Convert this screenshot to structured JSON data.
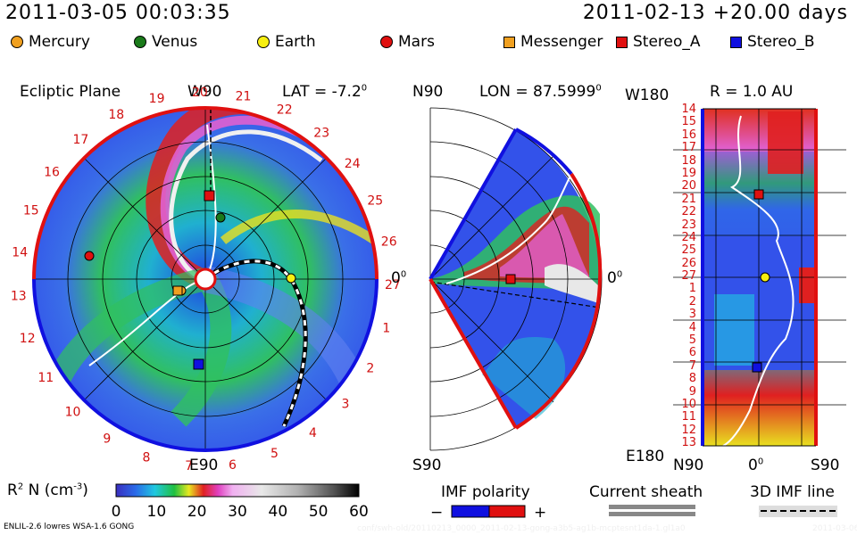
{
  "header": {
    "current_time": "2011-03-05 00:03:35",
    "run_info": "2011-02-13 +20.00 days"
  },
  "legend": {
    "bodies": [
      {
        "label": "Mercury",
        "color": "#f0a020",
        "shape": "circle"
      },
      {
        "label": "Venus",
        "color": "#1a7a1a",
        "shape": "circle"
      },
      {
        "label": "Earth",
        "color": "#f7ef10",
        "shape": "circle"
      },
      {
        "label": "Mars",
        "color": "#e01010",
        "shape": "circle"
      },
      {
        "label": "Messenger",
        "color": "#f0a020",
        "shape": "square"
      },
      {
        "label": "Stereo_A",
        "color": "#e01010",
        "shape": "square"
      },
      {
        "label": "Stereo_B",
        "color": "#1010e0",
        "shape": "square"
      }
    ]
  },
  "panels": {
    "ecliptic": {
      "title": "Ecliptic Plane",
      "top_label": "W90",
      "bottom_label": "E90",
      "right_label": "0",
      "lat_label": "LAT = -7.2",
      "lat_sup": "0",
      "carrington_ticks": [
        "19",
        "20",
        "21",
        "22",
        "23",
        "24",
        "25",
        "26",
        "27",
        "1",
        "2",
        "3",
        "4",
        "5",
        "6",
        "7",
        "8",
        "9",
        "10",
        "11",
        "12",
        "13",
        "14",
        "15",
        "16",
        "17",
        "18"
      ]
    },
    "meridional": {
      "top_label": "N90",
      "bottom_label": "S90",
      "right_label": "0",
      "lon_label": "LON = 87.5999",
      "lon_sup": "0"
    },
    "radial": {
      "r_label": "R = 1.0 AU",
      "top_left_label": "W180",
      "bottom_left_label": "E180",
      "bottom_n_label": "N90",
      "bottom_mid_label": "0",
      "bottom_s_label": "S90",
      "ticks": [
        "14",
        "15",
        "16",
        "17",
        "18",
        "19",
        "20",
        "21",
        "22",
        "23",
        "24",
        "25",
        "26",
        "27",
        "1",
        "2",
        "3",
        "4",
        "5",
        "6",
        "7",
        "8",
        "9",
        "10",
        "11",
        "12",
        "13"
      ]
    }
  },
  "colorbar": {
    "label": "R",
    "label_sup": "2",
    "label_rest": " N (cm",
    "label_exp": "-3",
    "label_close": ")",
    "ticks": [
      "0",
      "10",
      "20",
      "30",
      "40",
      "50",
      "60"
    ]
  },
  "imf_polarity": {
    "title": "IMF polarity",
    "minus": "−",
    "plus": "+",
    "minus_color": "#1010e0",
    "plus_color": "#e01010"
  },
  "current_sheath": {
    "title": "Current sheath"
  },
  "imf_line": {
    "title": "3D IMF line"
  },
  "footer": {
    "model": "ENLIL-2.6 lowres WSA-1.6 GONG",
    "path": "conf/swh-old/20110213_0000_2011-02-13-gong-a3b5-ag1b-mcptesnt1da-1.gl1a0",
    "date": "2011-03-06"
  }
}
